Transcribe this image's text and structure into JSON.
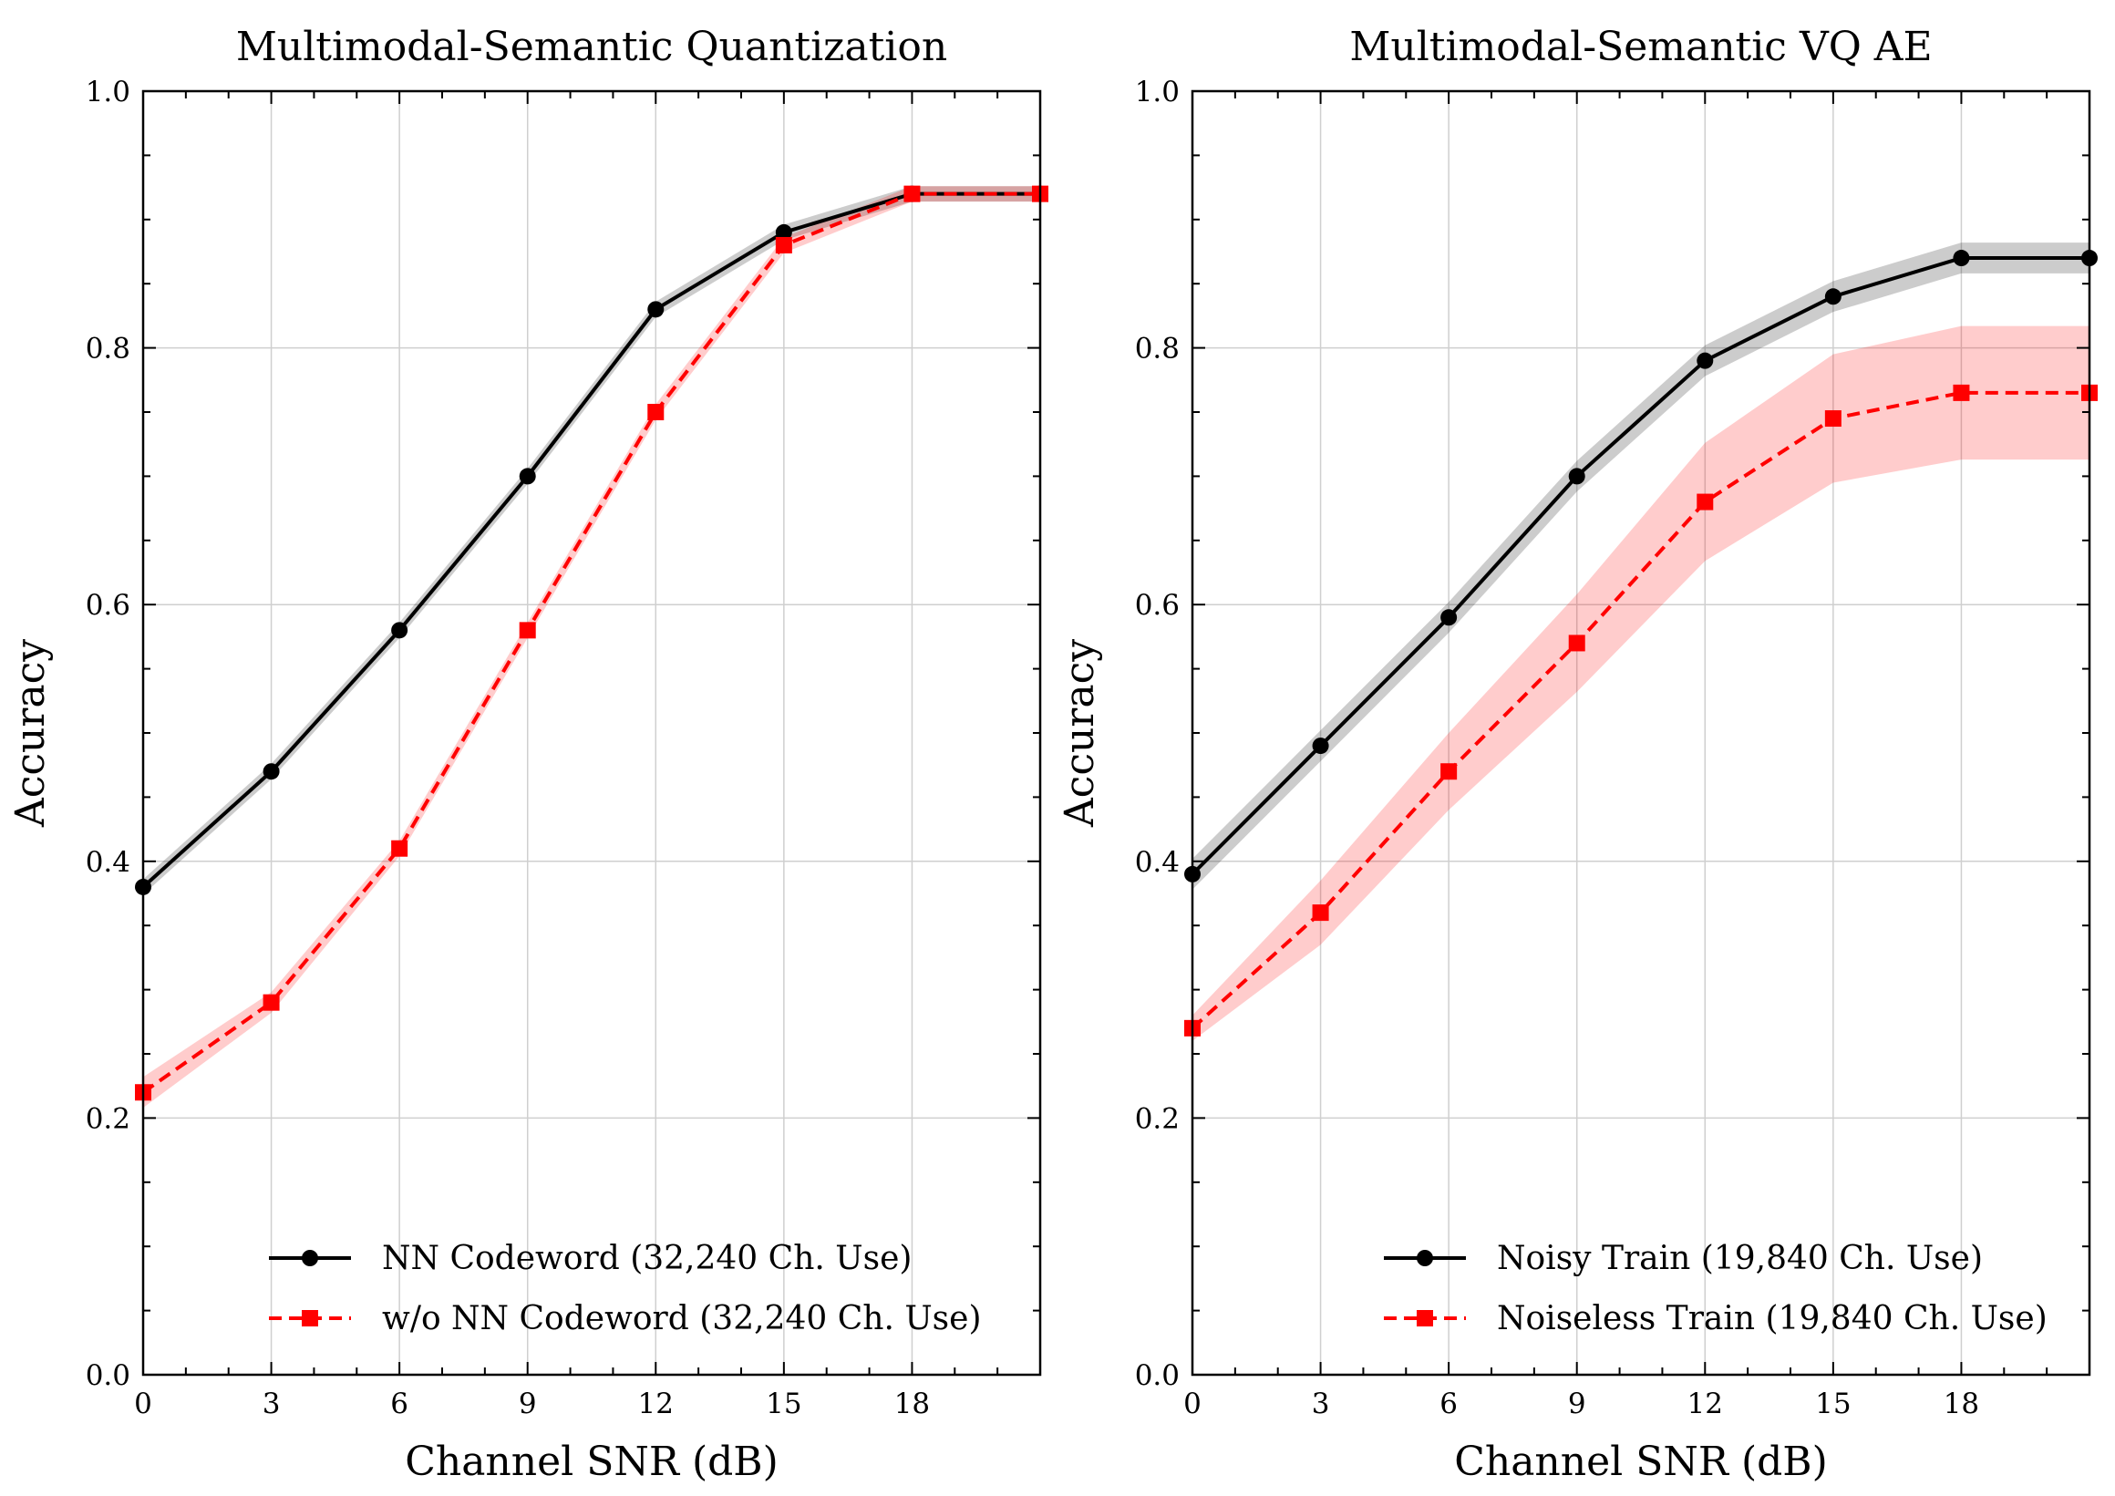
{
  "chart_data": [
    {
      "type": "line",
      "title": "Multimodal-Semantic Quantization",
      "xlabel": "Channel SNR (dB)",
      "ylabel": "Accuracy",
      "xlim": [
        0,
        21
      ],
      "ylim": [
        0.0,
        1.0
      ],
      "xticks": [
        0,
        3,
        6,
        9,
        12,
        15,
        18
      ],
      "xtick_labels": [
        "0",
        "3",
        "6",
        "9",
        "12",
        "15",
        "18"
      ],
      "yticks": [
        0.0,
        0.2,
        0.4,
        0.6,
        0.8,
        1.0
      ],
      "ytick_labels": [
        "0.0",
        "0.2",
        "0.4",
        "0.6",
        "0.8",
        "1.0"
      ],
      "grid": true,
      "legend_position": "lower-right",
      "x": [
        0,
        3,
        6,
        9,
        12,
        15,
        18,
        21
      ],
      "series": [
        {
          "name": "NN Codeword (32,240 Ch. Use)",
          "color": "#000000",
          "marker": "circle",
          "linestyle": "solid",
          "values": [
            0.38,
            0.47,
            0.58,
            0.7,
            0.83,
            0.89,
            0.92,
            0.92
          ],
          "band": [
            0.006,
            0.006,
            0.006,
            0.006,
            0.006,
            0.006,
            0.006,
            0.006
          ]
        },
        {
          "name": "w/o NN Codeword (32,240 Ch. Use)",
          "color": "#ff0000",
          "marker": "square",
          "linestyle": "dashed",
          "values": [
            0.22,
            0.29,
            0.41,
            0.58,
            0.75,
            0.88,
            0.92,
            0.92
          ],
          "band": [
            0.012,
            0.008,
            0.006,
            0.006,
            0.006,
            0.006,
            0.006,
            0.006
          ]
        }
      ]
    },
    {
      "type": "line",
      "title": "Multimodal-Semantic VQ AE",
      "xlabel": "Channel SNR (dB)",
      "ylabel": "Accuracy",
      "xlim": [
        0,
        21
      ],
      "ylim": [
        0.0,
        1.0
      ],
      "xticks": [
        0,
        3,
        6,
        9,
        12,
        15,
        18
      ],
      "xtick_labels": [
        "0",
        "3",
        "6",
        "9",
        "12",
        "15",
        "18"
      ],
      "yticks": [
        0.0,
        0.2,
        0.4,
        0.6,
        0.8,
        1.0
      ],
      "ytick_labels": [
        "0.0",
        "0.2",
        "0.4",
        "0.6",
        "0.8",
        "1.0"
      ],
      "grid": true,
      "legend_position": "lower-right",
      "x": [
        0,
        3,
        6,
        9,
        12,
        15,
        18,
        21
      ],
      "series": [
        {
          "name": "Noisy Train (19,840 Ch. Use)",
          "color": "#000000",
          "marker": "circle",
          "linestyle": "solid",
          "values": [
            0.39,
            0.49,
            0.59,
            0.7,
            0.79,
            0.84,
            0.87,
            0.87
          ],
          "band": [
            0.012,
            0.012,
            0.012,
            0.012,
            0.012,
            0.012,
            0.012,
            0.012
          ]
        },
        {
          "name": "Noiseless Train (19,840 Ch. Use)",
          "color": "#ff0000",
          "marker": "square",
          "linestyle": "dashed",
          "values": [
            0.27,
            0.36,
            0.47,
            0.57,
            0.68,
            0.745,
            0.765,
            0.765
          ],
          "band": [
            0.01,
            0.025,
            0.03,
            0.038,
            0.046,
            0.05,
            0.052,
            0.052
          ]
        }
      ]
    }
  ]
}
